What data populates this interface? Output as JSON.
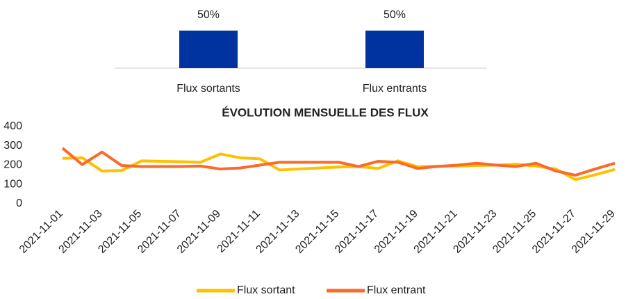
{
  "chart_data": [
    {
      "type": "bar",
      "categories": [
        "Flux sortants",
        "Flux entrants"
      ],
      "values": [
        50,
        50
      ],
      "value_labels": [
        "50%",
        "50%"
      ],
      "color": "#0033a0"
    },
    {
      "type": "line",
      "title": "ÉVOLUTION MENSUELLE DES FLUX",
      "categories": [
        "2021-11-01",
        null,
        "2021-11-03",
        null,
        "2021-11-05",
        null,
        "2021-11-07",
        null,
        "2021-11-09",
        null,
        "2021-11-11",
        null,
        "2021-11-13",
        null,
        "2021-11-15",
        null,
        "2021-11-17",
        null,
        "2021-11-19",
        null,
        "2021-11-21",
        null,
        "2021-11-23",
        null,
        "2021-11-25",
        null,
        "2021-11-27",
        null,
        "2021-11-29"
      ],
      "series": [
        {
          "name": "Flux sortant",
          "color": "#ffc000",
          "values": [
            235,
            238,
            170,
            172,
            222,
            220,
            218,
            215,
            258,
            238,
            233,
            175,
            180,
            185,
            190,
            193,
            183,
            222,
            192,
            195,
            195,
            198,
            200,
            205,
            195,
            180,
            125,
            150,
            178
          ]
        },
        {
          "name": "Flux entrant",
          "color": "#f96b2b",
          "values": [
            288,
            203,
            268,
            198,
            193,
            193,
            193,
            195,
            180,
            185,
            200,
            215,
            215,
            215,
            215,
            193,
            220,
            215,
            183,
            193,
            200,
            210,
            200,
            193,
            210,
            170,
            148,
            180,
            210
          ]
        }
      ],
      "ylim": [
        0,
        400
      ],
      "yticks": [
        0,
        100,
        200,
        300,
        400
      ],
      "legend": "bottom"
    }
  ]
}
